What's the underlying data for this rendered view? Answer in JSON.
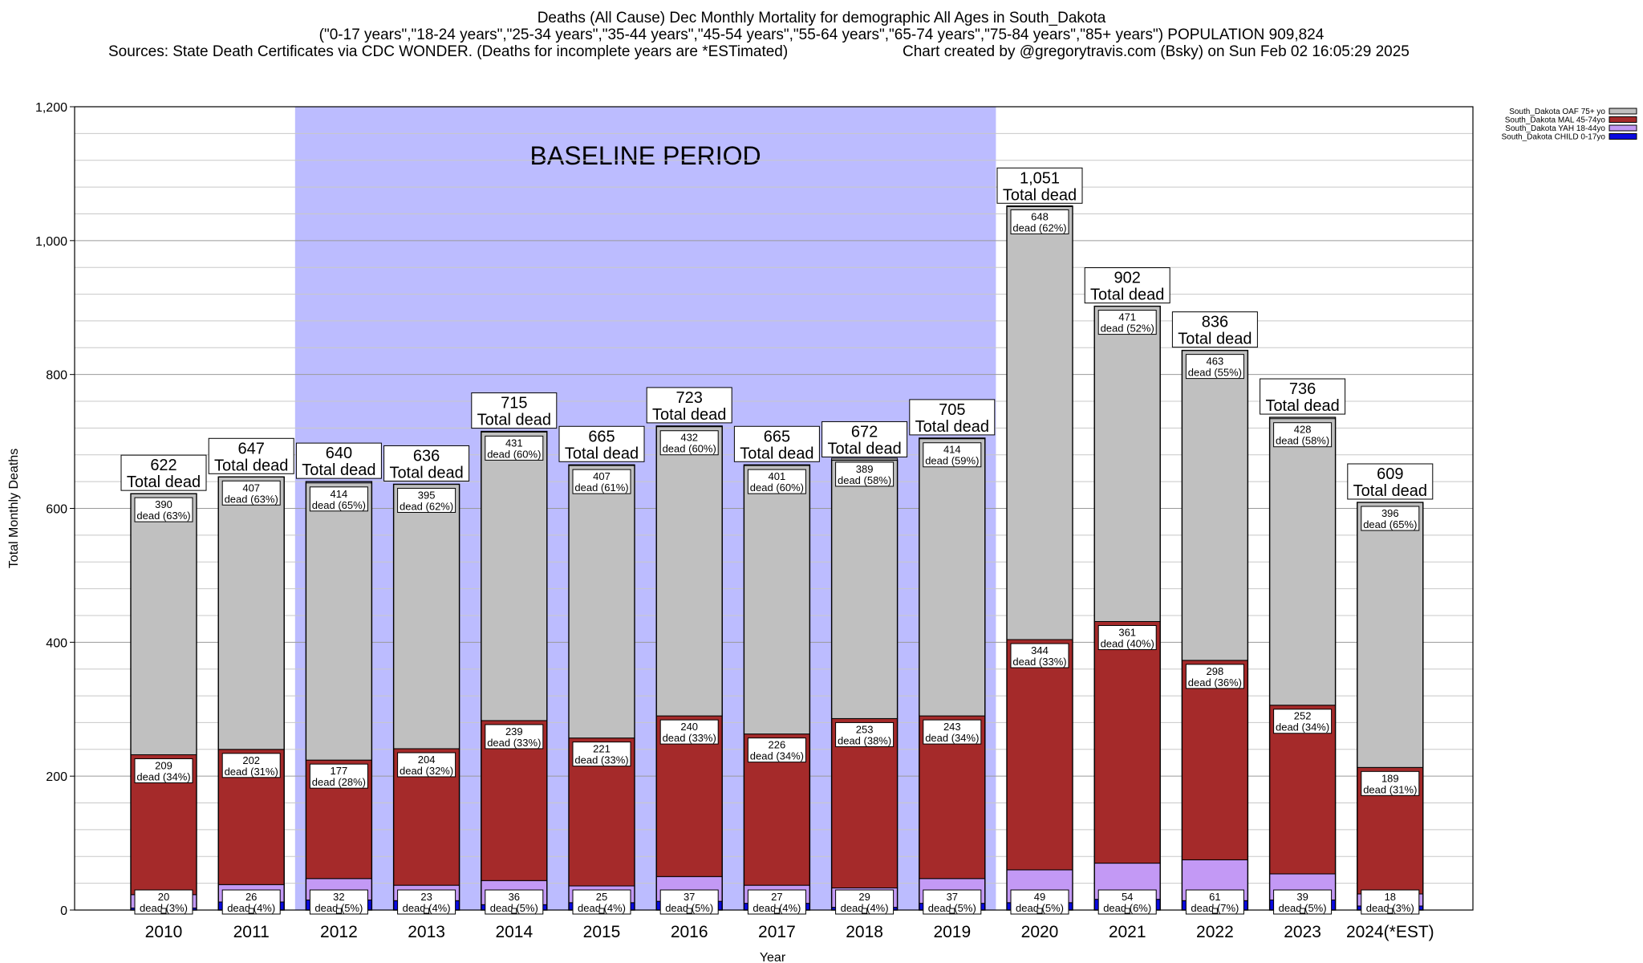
{
  "header": {
    "title": "Deaths (All Cause) Dec Monthly Mortality for demographic All Ages in South_Dakota",
    "subtitle": "(\"0-17 years\",\"18-24 years\",\"25-34 years\",\"35-44 years\",\"45-54 years\",\"55-64 years\",\"65-74 years\",\"75-84 years\",\"85+ years\") POPULATION 909,824",
    "sources": "Sources: State Death Certificates via CDC WONDER. (Deaths for incomplete years are *ESTimated)",
    "credit": "Chart created by @gregorytravis.com (Bsky) on Sun Feb 02 16:05:29 2025"
  },
  "chart_data": {
    "type": "bar",
    "stacked": true,
    "xlabel": "Year",
    "ylabel": "Total Monthly Deaths",
    "ylim": [
      0,
      1200
    ],
    "yticks": [
      0,
      200,
      400,
      600,
      800,
      1000,
      1200
    ],
    "ytick_labels": [
      "0",
      "200",
      "400",
      "600",
      "800",
      "1,000",
      "1,200"
    ],
    "grid": true,
    "legend_position": "top-right (outside plot)",
    "baseline_label": "BASELINE PERIOD",
    "baseline_range": [
      "2012",
      "2019"
    ],
    "baseline_color": "#bcbcff",
    "categories": [
      "2010",
      "2011",
      "2012",
      "2013",
      "2014",
      "2015",
      "2016",
      "2017",
      "2018",
      "2019",
      "2020",
      "2021",
      "2022",
      "2023",
      "2024(*EST)"
    ],
    "totals": [
      622,
      647,
      640,
      636,
      715,
      665,
      723,
      665,
      672,
      705,
      1051,
      902,
      836,
      736,
      609
    ],
    "total_labels": [
      "622",
      "647",
      "640",
      "636",
      "715",
      "665",
      "723",
      "665",
      "672",
      "705",
      "1,051",
      "902",
      "836",
      "736",
      "609"
    ],
    "total_caption": "Total dead",
    "series": [
      {
        "name": "South_Dakota CHILD 0-17yo",
        "color": "#0a0ae0",
        "values": [
          3,
          12,
          15,
          14,
          8,
          11,
          13,
          10,
          4,
          10,
          11,
          16,
          14,
          15,
          6
        ]
      },
      {
        "name": "South_Dakota YAH 18-44yo",
        "color": "#c399f5",
        "values": [
          20,
          26,
          32,
          23,
          36,
          25,
          37,
          27,
          29,
          37,
          49,
          54,
          61,
          39,
          18
        ]
      },
      {
        "name": "South_Dakota MAL 45-74yo",
        "color": "#a52a2a",
        "values": [
          209,
          202,
          177,
          204,
          239,
          221,
          240,
          226,
          253,
          243,
          344,
          361,
          298,
          252,
          189
        ],
        "pct": [
          "34%",
          "31%",
          "28%",
          "32%",
          "33%",
          "33%",
          "33%",
          "34%",
          "38%",
          "34%",
          "33%",
          "40%",
          "36%",
          "34%",
          "31%"
        ]
      },
      {
        "name": "South_Dakota OAF 75+ yo",
        "color": "#c0c0c0",
        "values": [
          390,
          407,
          414,
          395,
          431,
          407,
          432,
          401,
          389,
          414,
          648,
          471,
          463,
          428,
          396
        ],
        "pct": [
          "63%",
          "63%",
          "65%",
          "62%",
          "60%",
          "61%",
          "60%",
          "60%",
          "58%",
          "59%",
          "62%",
          "52%",
          "55%",
          "58%",
          "65%"
        ]
      }
    ],
    "yah_pct": [
      "3%",
      "4%",
      "5%",
      "4%",
      "5%",
      "4%",
      "5%",
      "4%",
      "4%",
      "5%",
      "5%",
      "6%",
      "7%",
      "5%",
      "3%"
    ],
    "segment_word": "dead"
  }
}
